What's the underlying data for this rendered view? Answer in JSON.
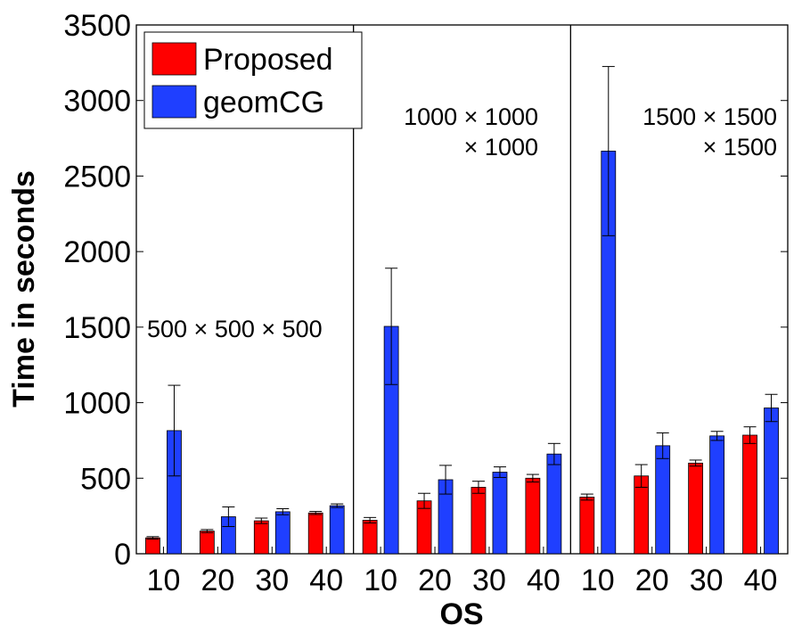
{
  "chart_data": {
    "type": "bar",
    "xlabel": "OS",
    "ylabel": "Time in seconds",
    "ylim": [
      0,
      3500
    ],
    "yticks": [
      "0",
      "500",
      "1000",
      "1500",
      "2000",
      "2500",
      "3000",
      "3500"
    ],
    "categories": [
      "10",
      "20",
      "30",
      "40",
      "10",
      "20",
      "30",
      "40",
      "10",
      "20",
      "30",
      "40"
    ],
    "groups": [
      {
        "label_lines": [
          "500 × 500 × 500"
        ],
        "categories": [
          "10",
          "20",
          "30",
          "40"
        ]
      },
      {
        "label_lines": [
          "1000 × 1000",
          "× 1000"
        ],
        "categories": [
          "10",
          "20",
          "30",
          "40"
        ]
      },
      {
        "label_lines": [
          "1500 × 1500",
          "× 1500"
        ],
        "categories": [
          "10",
          "20",
          "30",
          "40"
        ]
      }
    ],
    "series": [
      {
        "name": "Proposed",
        "color": "#ff0000",
        "values": [
          105,
          150,
          218,
          270,
          222,
          350,
          440,
          500,
          375,
          515,
          600,
          785
        ],
        "errors": [
          8,
          10,
          18,
          10,
          18,
          50,
          40,
          25,
          20,
          75,
          20,
          55
        ]
      },
      {
        "name": "geomCG",
        "color": "#1f3fff",
        "values": [
          815,
          245,
          278,
          318,
          1505,
          490,
          540,
          660,
          2665,
          715,
          780,
          965
        ],
        "errors": [
          300,
          65,
          20,
          12,
          385,
          95,
          35,
          70,
          560,
          85,
          30,
          90
        ]
      }
    ],
    "legend": {
      "placement": "top-left"
    },
    "grid": false
  }
}
